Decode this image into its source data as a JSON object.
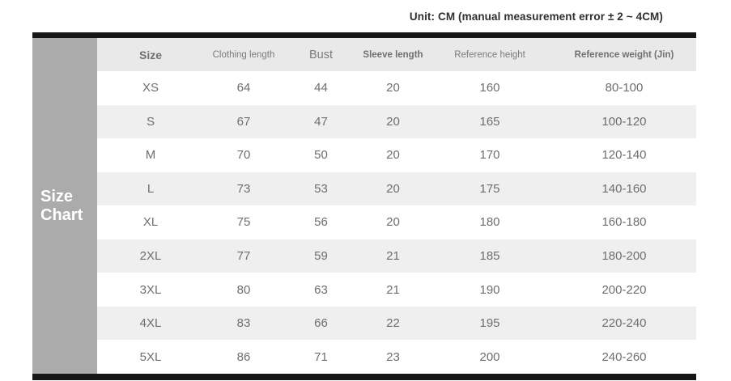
{
  "unit_note": "Unit: CM (manual measurement error ± 2 ~ 4CM)",
  "side_label": "Size Chart",
  "chart_data": {
    "type": "table",
    "title": "Size Chart",
    "columns": [
      "Size",
      "Clothing length",
      "Bust",
      "Sleeve length",
      "Reference height",
      "Reference weight (Jin)"
    ],
    "rows": [
      [
        "XS",
        "64",
        "44",
        "20",
        "160",
        "80-100"
      ],
      [
        "S",
        "67",
        "47",
        "20",
        "165",
        "100-120"
      ],
      [
        "M",
        "70",
        "50",
        "20",
        "170",
        "120-140"
      ],
      [
        "L",
        "73",
        "53",
        "20",
        "175",
        "140-160"
      ],
      [
        "XL",
        "75",
        "56",
        "20",
        "180",
        "160-180"
      ],
      [
        "2XL",
        "77",
        "59",
        "21",
        "185",
        "180-200"
      ],
      [
        "3XL",
        "80",
        "63",
        "21",
        "190",
        "200-220"
      ],
      [
        "4XL",
        "83",
        "66",
        "22",
        "195",
        "220-240"
      ],
      [
        "5XL",
        "86",
        "71",
        "23",
        "200",
        "240-260"
      ]
    ],
    "layout": {
      "row_striping": "odd rows white, even rows light gray",
      "header_background": "#e9e9e9",
      "alt_row_background": "#efefef",
      "side_block_background": "#ababab",
      "bar_color": "#161616",
      "legend_position": "none",
      "grid": false
    }
  }
}
